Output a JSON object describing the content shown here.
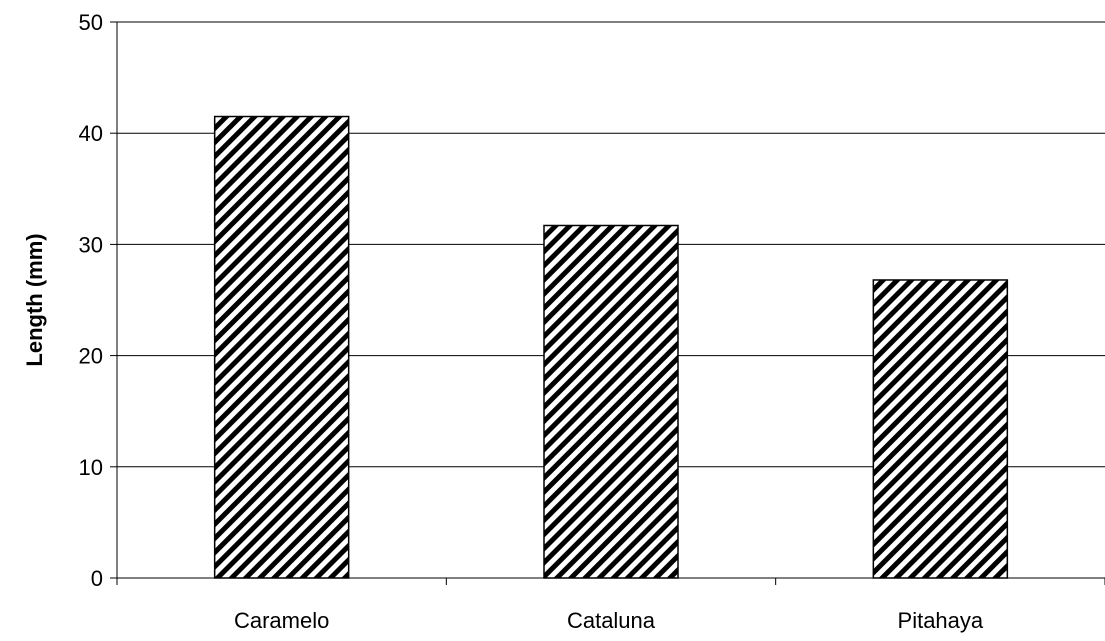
{
  "chart_data": {
    "type": "bar",
    "categories": [
      "Caramelo",
      "Cataluna",
      "Pitahaya"
    ],
    "values": [
      41.5,
      31.7,
      26.8
    ],
    "title": "",
    "xlabel": "",
    "ylabel": "Length (mm)",
    "ylim": [
      0,
      50
    ],
    "yticks": [
      "0",
      "10",
      "20",
      "30",
      "40",
      "50"
    ],
    "grid": true,
    "legend": "none",
    "bar_fill": "diagonal black-and-white hatch"
  },
  "colors": {
    "hatch_dark": "#000000",
    "hatch_light": "#ffffff",
    "background": "#ffffff",
    "gridline": "#000000"
  }
}
